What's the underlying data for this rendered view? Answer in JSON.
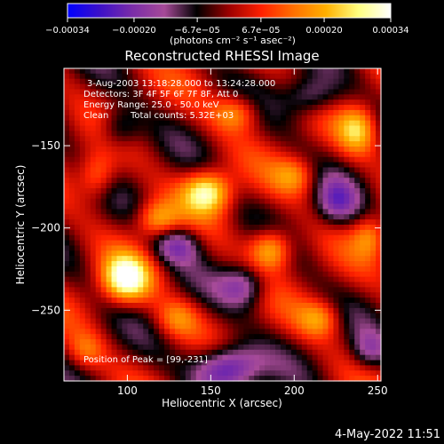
{
  "chart_data": {
    "type": "heatmap",
    "title": "Reconstructed RHESSI Image",
    "xlabel": "Heliocentric X (arcsec)",
    "ylabel": "Heliocentric Y (arcsec)",
    "xlim": [
      62,
      252
    ],
    "ylim": [
      -293,
      -103
    ],
    "x_ticks": [
      {
        "value": 100,
        "label": "100"
      },
      {
        "value": 150,
        "label": "150"
      },
      {
        "value": 200,
        "label": "200"
      },
      {
        "value": 250,
        "label": "250"
      }
    ],
    "y_ticks": [
      {
        "value": -150,
        "label": "−150"
      },
      {
        "value": -200,
        "label": "−200"
      },
      {
        "value": -250,
        "label": "−250"
      }
    ],
    "colorbar": {
      "range": [
        -0.00034,
        0.00034
      ],
      "tick_values": [
        -0.00034,
        -0.0002,
        -6.7e-05,
        6.7e-05,
        0.0002,
        0.00034
      ],
      "tick_labels": [
        "−0.00034",
        "−0.00020",
        "−6.7e−05",
        "6.7e−05",
        "0.00020",
        "0.00034"
      ],
      "stops": [
        "#0000ff",
        "#3c10c8",
        "#7a2ca8",
        "#a64a98",
        "#000000",
        "#9c0000",
        "#ff2000",
        "#ff7000",
        "#ffb000",
        "#ffff80",
        "#ffffff"
      ],
      "unit_label": "(photons cm⁻² s⁻¹ asec⁻²)"
    },
    "annotations": {
      "time_range": "3-Aug-2003 13:18:28.000 to 13:24:28.000",
      "detectors": "Detectors: 3F 4F 5F 6F 7F 8F, Att 0",
      "energy_range": "Energy Range: 25.0 - 50.0 keV",
      "clean_label": "Clean",
      "total_counts": "Total counts: 5.32E+03",
      "peak": "Position of Peak = [99,-231]"
    },
    "peaks": [
      {
        "x": 99,
        "y": -231,
        "amplitude": 1.0,
        "sx": 10,
        "sy": 10
      },
      {
        "x": 148,
        "y": -178,
        "amplitude": 0.92,
        "sx": 10,
        "sy": 9
      },
      {
        "x": 186,
        "y": -213,
        "amplitude": 0.78,
        "sx": 9,
        "sy": 9
      },
      {
        "x": 238,
        "y": -140,
        "amplitude": 0.62,
        "sx": 8,
        "sy": 10
      },
      {
        "x": 118,
        "y": -195,
        "amplitude": 0.6,
        "sx": 9,
        "sy": 8
      },
      {
        "x": 165,
        "y": -130,
        "amplitude": 0.55,
        "sx": 10,
        "sy": 8
      },
      {
        "x": 215,
        "y": -255,
        "amplitude": 0.5,
        "sx": 9,
        "sy": 8
      },
      {
        "x": 82,
        "y": -168,
        "amplitude": 0.5,
        "sx": 8,
        "sy": 10
      },
      {
        "x": 200,
        "y": -168,
        "amplitude": 0.45,
        "sx": 9,
        "sy": 8
      },
      {
        "x": 245,
        "y": -205,
        "amplitude": 0.45,
        "sx": 7,
        "sy": 9
      },
      {
        "x": 130,
        "y": -255,
        "amplitude": 0.4,
        "sx": 9,
        "sy": 8
      },
      {
        "x": 75,
        "y": -275,
        "amplitude": 0.35,
        "sx": 8,
        "sy": 8
      }
    ],
    "troughs": [
      {
        "x": 160,
        "y": -285,
        "amplitude": -0.9,
        "sx": 14,
        "sy": 10
      },
      {
        "x": 130,
        "y": -210,
        "amplitude": -0.55,
        "sx": 10,
        "sy": 8
      },
      {
        "x": 210,
        "y": -120,
        "amplitude": -0.5,
        "sx": 12,
        "sy": 9
      },
      {
        "x": 170,
        "y": -235,
        "amplitude": -0.55,
        "sx": 10,
        "sy": 9
      },
      {
        "x": 95,
        "y": -140,
        "amplitude": -0.45,
        "sx": 9,
        "sy": 9
      },
      {
        "x": 225,
        "y": -185,
        "amplitude": -0.5,
        "sx": 9,
        "sy": 10
      },
      {
        "x": 245,
        "y": -275,
        "amplitude": -0.4,
        "sx": 8,
        "sy": 8
      }
    ]
  },
  "footer": {
    "timestamp": "4-May-2022 11:51"
  }
}
